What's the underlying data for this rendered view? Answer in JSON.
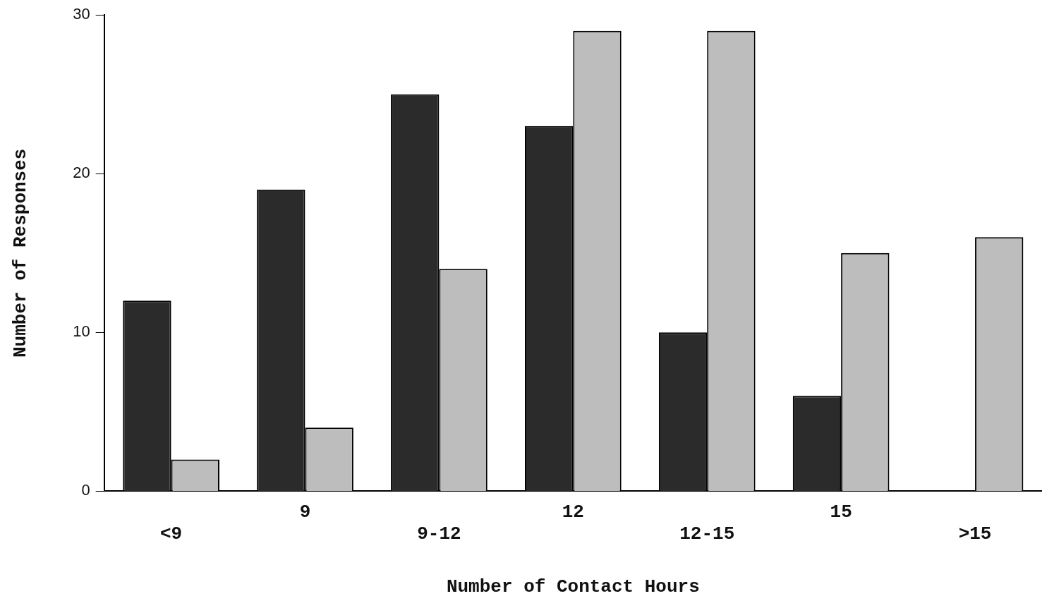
{
  "chart_data": {
    "type": "bar",
    "xlabel": "Number of Contact Hours",
    "ylabel": "Number of Responses",
    "categories": [
      "<9",
      "9",
      "9-12",
      "12",
      "12-15",
      "15",
      ">15"
    ],
    "series": [
      {
        "color": "#2b2b2b",
        "values": [
          12,
          19,
          25,
          23,
          10,
          6,
          null
        ]
      },
      {
        "color": "#bdbdbd",
        "values": [
          2,
          4,
          14,
          29,
          29,
          15,
          16
        ]
      }
    ],
    "ylim": [
      0,
      30
    ],
    "yticks": [
      0,
      10,
      20,
      30
    ],
    "grid": false,
    "legend": false
  }
}
